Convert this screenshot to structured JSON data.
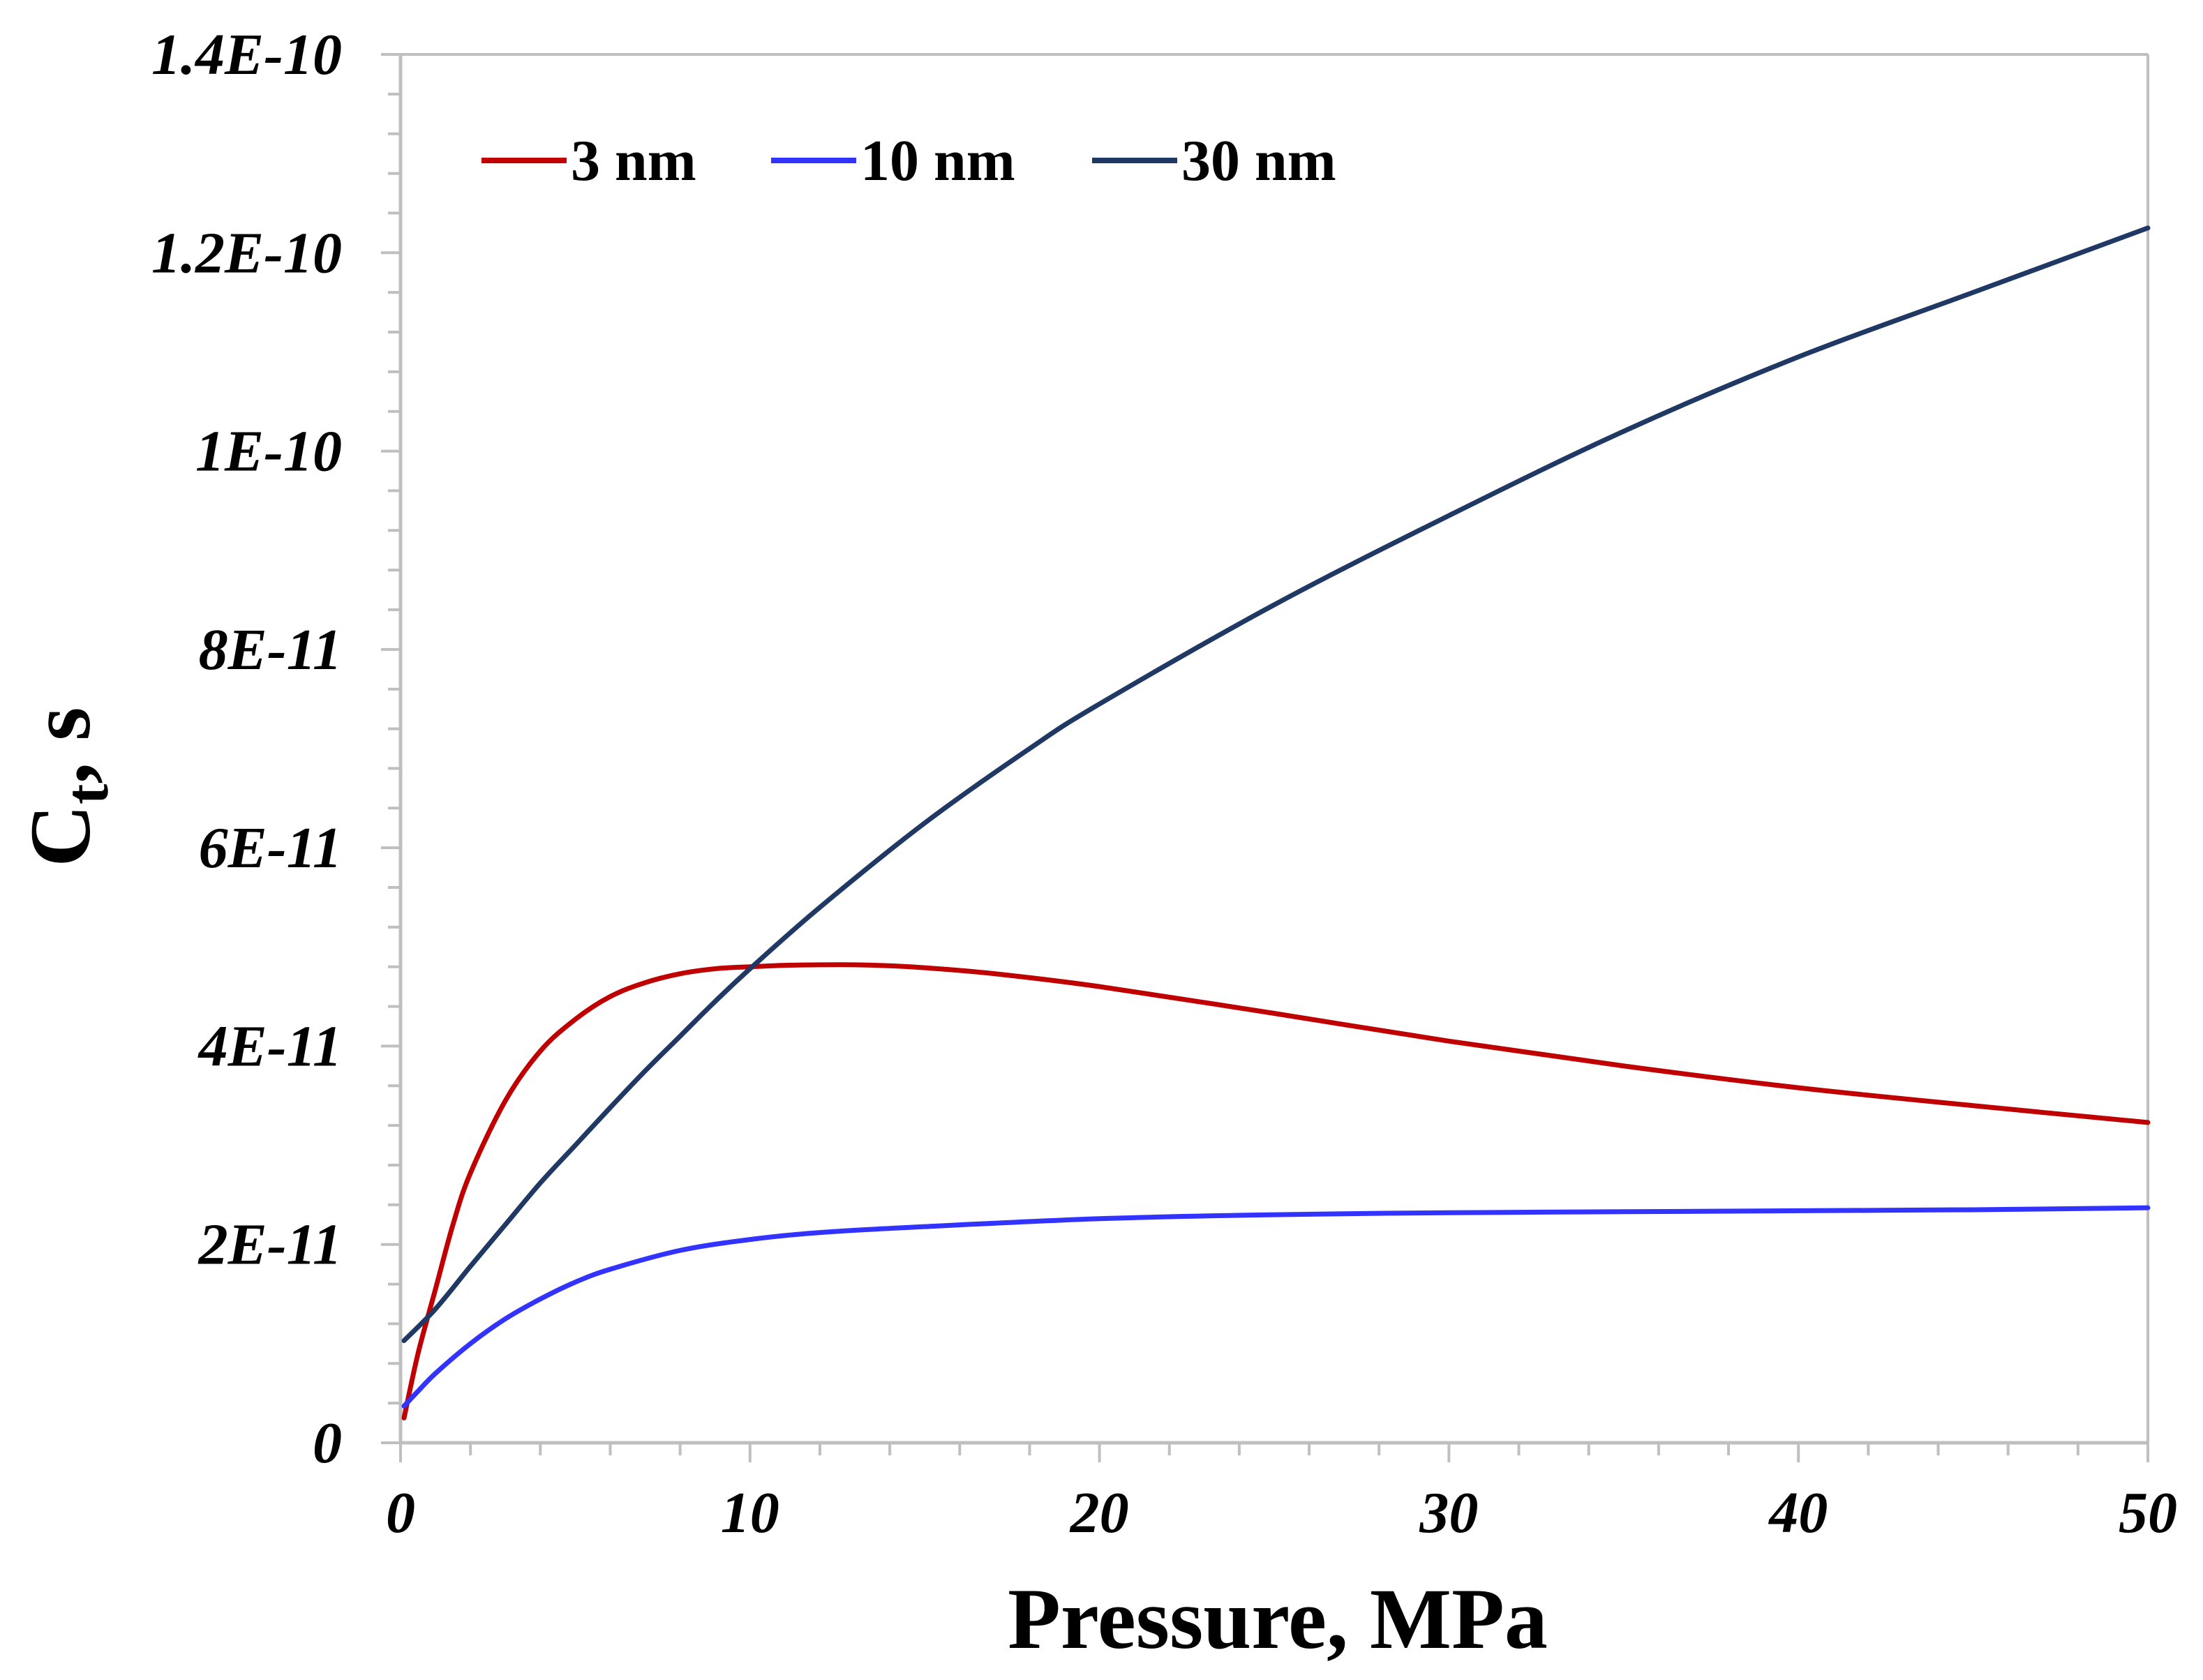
{
  "chart_data": {
    "type": "line",
    "title": "",
    "xlabel": "Pressure, MPa",
    "ylabel_main": "C",
    "ylabel_sub": "t",
    "ylabel_rest": ", s",
    "xlim": [
      0,
      50
    ],
    "ylim": [
      0,
      1.4e-10
    ],
    "x_major_step": 10,
    "x_minor_step": 2,
    "y_major_step": 2e-11,
    "y_minor_step": 4e-12,
    "x_tick_labels": [
      "0",
      "10",
      "20",
      "30",
      "40",
      "50"
    ],
    "y_tick_labels": [
      "0",
      "2E-11",
      "4E-11",
      "6E-11",
      "8E-11",
      "1E-10",
      "1.2E-10",
      "1.4E-10"
    ],
    "grid": false,
    "legend_position": "top-left",
    "series": [
      {
        "name": "3 nm",
        "color": "#c00000",
        "x": [
          0.1,
          0.5,
          1,
          1.5,
          2,
          3,
          4,
          5,
          6,
          7,
          8,
          9,
          10,
          11,
          12,
          13,
          14,
          15,
          17,
          20,
          25,
          30,
          35,
          40,
          45,
          50
        ],
        "y": [
          2.5e-12,
          9e-12,
          1.55e-11,
          2.2e-11,
          2.72e-11,
          3.45e-11,
          3.95e-11,
          4.27e-11,
          4.5e-11,
          4.64e-11,
          4.73e-11,
          4.78e-11,
          4.8e-11,
          4.815e-11,
          4.82e-11,
          4.82e-11,
          4.81e-11,
          4.79e-11,
          4.73e-11,
          4.6e-11,
          4.33e-11,
          4.05e-11,
          3.8e-11,
          3.58e-11,
          3.4e-11,
          3.23e-11
        ]
      },
      {
        "name": "10 nm",
        "color": "#3333ff",
        "x": [
          0.1,
          0.5,
          1,
          2,
          3,
          4,
          5,
          6,
          8,
          10,
          12,
          15,
          20,
          25,
          30,
          35,
          40,
          45,
          50
        ],
        "y": [
          3.7e-12,
          5.2e-12,
          7e-12,
          1e-11,
          1.25e-11,
          1.45e-11,
          1.62e-11,
          1.75e-11,
          1.94e-11,
          2.05e-11,
          2.12e-11,
          2.18e-11,
          2.26e-11,
          2.3e-11,
          2.32e-11,
          2.33e-11,
          2.34e-11,
          2.35e-11,
          2.37e-11
        ]
      },
      {
        "name": "30 nm",
        "color": "#1f3864",
        "x": [
          0.1,
          1,
          2,
          3,
          4,
          5,
          6,
          7,
          8,
          9,
          10,
          12,
          15,
          18,
          20,
          25,
          30,
          35,
          40,
          45,
          50
        ],
        "y": [
          1.03e-11,
          1.35e-11,
          1.78e-11,
          2.2e-11,
          2.62e-11,
          3e-11,
          3.38e-11,
          3.75e-11,
          4.1e-11,
          4.45e-11,
          4.78e-11,
          5.4e-11,
          6.25e-11,
          7e-11,
          7.45e-11,
          8.45e-11,
          9.35e-11,
          1.02e-10,
          1.095e-10,
          1.16e-10,
          1.225e-10
        ]
      }
    ]
  }
}
